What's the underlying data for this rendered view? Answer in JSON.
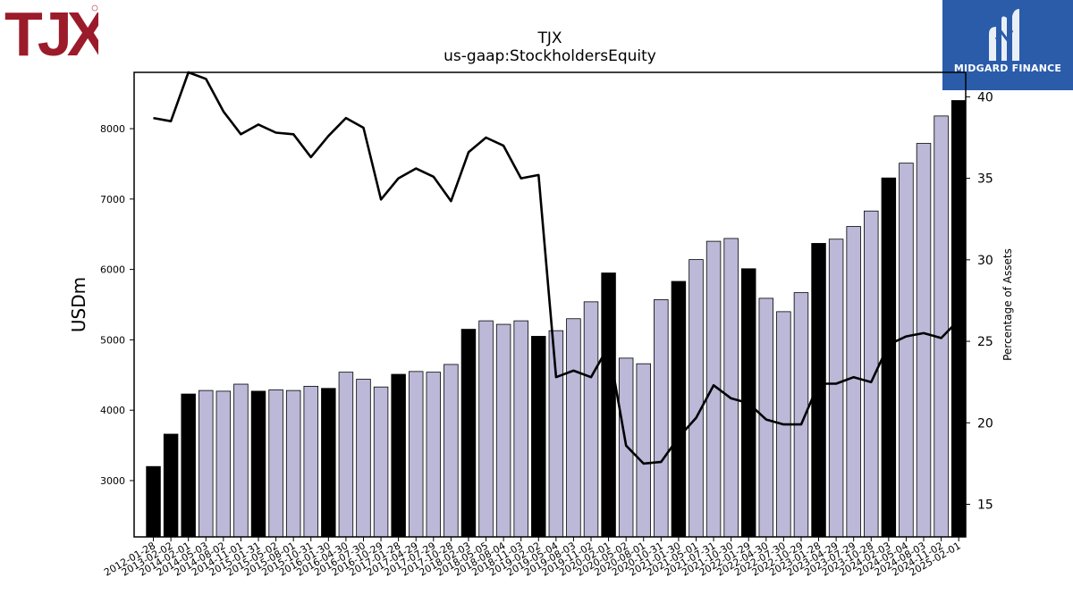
{
  "header": {
    "title": "TJX",
    "subtitle": "us-gaap:StockholdersEquity"
  },
  "logos": {
    "left_text": "TJX",
    "left_color": "#9b1b2a",
    "right_text": "MIDGARD FINANCE",
    "right_color": "#2a5caa"
  },
  "chart_data": {
    "type": "bar",
    "ylabel": "USDm",
    "y2label": "Percentage of Assets",
    "ylim": [
      2200,
      8800
    ],
    "y2lim": [
      13.0,
      41.5
    ],
    "yticks": [
      3000,
      4000,
      5000,
      6000,
      7000,
      8000
    ],
    "y2ticks": [
      15,
      20,
      25,
      30,
      35,
      40
    ],
    "bar_colors": {
      "annual": "#000000",
      "quarterly": "#bcb8d8"
    },
    "line_color": "#000000",
    "categories": [
      "2012-01-28",
      "2013-02-02",
      "2014-02-01",
      "2014-05-03",
      "2014-08-02",
      "2014-11-01",
      "2015-01-31",
      "2015-05-02",
      "2015-08-01",
      "2015-10-31",
      "2016-01-30",
      "2016-04-30",
      "2016-07-30",
      "2016-10-29",
      "2017-01-28",
      "2017-04-29",
      "2017-07-29",
      "2017-10-28",
      "2018-02-03",
      "2018-05-05",
      "2018-08-04",
      "2018-11-03",
      "2019-02-02",
      "2019-05-04",
      "2019-08-03",
      "2019-11-02",
      "2020-02-01",
      "2020-05-02",
      "2020-08-01",
      "2020-10-31",
      "2021-01-30",
      "2021-05-01",
      "2021-07-31",
      "2021-10-30",
      "2022-01-29",
      "2022-04-30",
      "2022-07-30",
      "2022-10-29",
      "2023-01-28",
      "2023-04-29",
      "2023-07-29",
      "2023-10-28",
      "2024-02-03",
      "2024-05-04",
      "2024-08-03",
      "2024-11-02",
      "2025-02-01"
    ],
    "annual": [
      true,
      true,
      true,
      false,
      false,
      false,
      true,
      false,
      false,
      false,
      true,
      false,
      false,
      false,
      true,
      false,
      false,
      false,
      true,
      false,
      false,
      false,
      true,
      false,
      false,
      false,
      true,
      false,
      false,
      false,
      true,
      false,
      false,
      false,
      true,
      false,
      false,
      false,
      true,
      false,
      false,
      false,
      true,
      false,
      false,
      false,
      true
    ],
    "series": [
      {
        "name": "StockholdersEquity",
        "axis": "left",
        "kind": "bar",
        "values": [
          3200,
          3660,
          4230,
          4280,
          4270,
          4370,
          4270,
          4290,
          4280,
          4340,
          4310,
          4540,
          4440,
          4330,
          4510,
          4550,
          4540,
          4650,
          5150,
          5270,
          5220,
          5270,
          5050,
          5130,
          5300,
          5540,
          5950,
          4740,
          4660,
          5570,
          5830,
          6140,
          6400,
          6440,
          6010,
          5590,
          5400,
          5670,
          6370,
          6430,
          6610,
          6830,
          7300,
          7510,
          7790,
          8180,
          8400
        ]
      },
      {
        "name": "Percentage of Assets",
        "axis": "right",
        "kind": "line",
        "values": [
          38.7,
          38.5,
          41.5,
          41.1,
          39.1,
          37.7,
          38.3,
          37.8,
          37.7,
          36.3,
          37.6,
          38.7,
          38.1,
          33.7,
          35.0,
          35.6,
          35.1,
          33.6,
          36.6,
          37.5,
          37.0,
          35.0,
          35.2,
          22.8,
          23.2,
          22.8,
          24.7,
          18.6,
          17.5,
          17.6,
          19.1,
          20.3,
          22.3,
          21.5,
          21.2,
          20.2,
          19.9,
          19.9,
          22.4,
          22.4,
          22.8,
          22.5,
          24.8,
          25.3,
          25.5,
          25.2,
          26.3
        ]
      }
    ]
  }
}
